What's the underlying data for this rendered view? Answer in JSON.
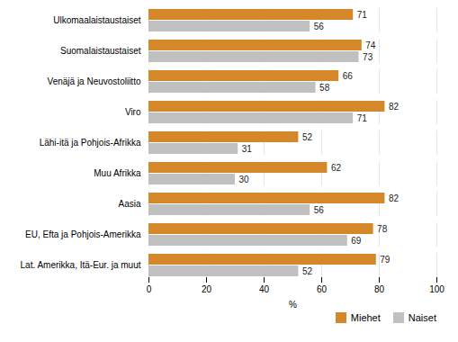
{
  "chart_data": {
    "type": "bar",
    "orientation": "horizontal",
    "categories": [
      "Ulkomaalaistaustaiset",
      "Suomalaistaustaiset",
      "Venäjä ja Neuvostoliitto",
      "Viro",
      "Lähi-itä ja Pohjois-Afrikka",
      "Muu Afrikka",
      "Aasia",
      "EU, Efta ja Pohjois-Amerikka",
      "Lat. Amerikka, Itä-Eur. ja muut"
    ],
    "series": [
      {
        "name": "Miehet",
        "color": "#D4882A",
        "values": [
          71,
          74,
          66,
          82,
          52,
          62,
          82,
          78,
          79
        ]
      },
      {
        "name": "Naiset",
        "color": "#C0C0C0",
        "values": [
          56,
          73,
          58,
          71,
          31,
          30,
          56,
          69,
          52
        ]
      }
    ],
    "xlabel": "%",
    "xlim": [
      0,
      100
    ],
    "xticks": [
      0,
      20,
      40,
      60,
      80,
      100
    ],
    "grid": true,
    "data_labels": true,
    "legend": "right"
  }
}
